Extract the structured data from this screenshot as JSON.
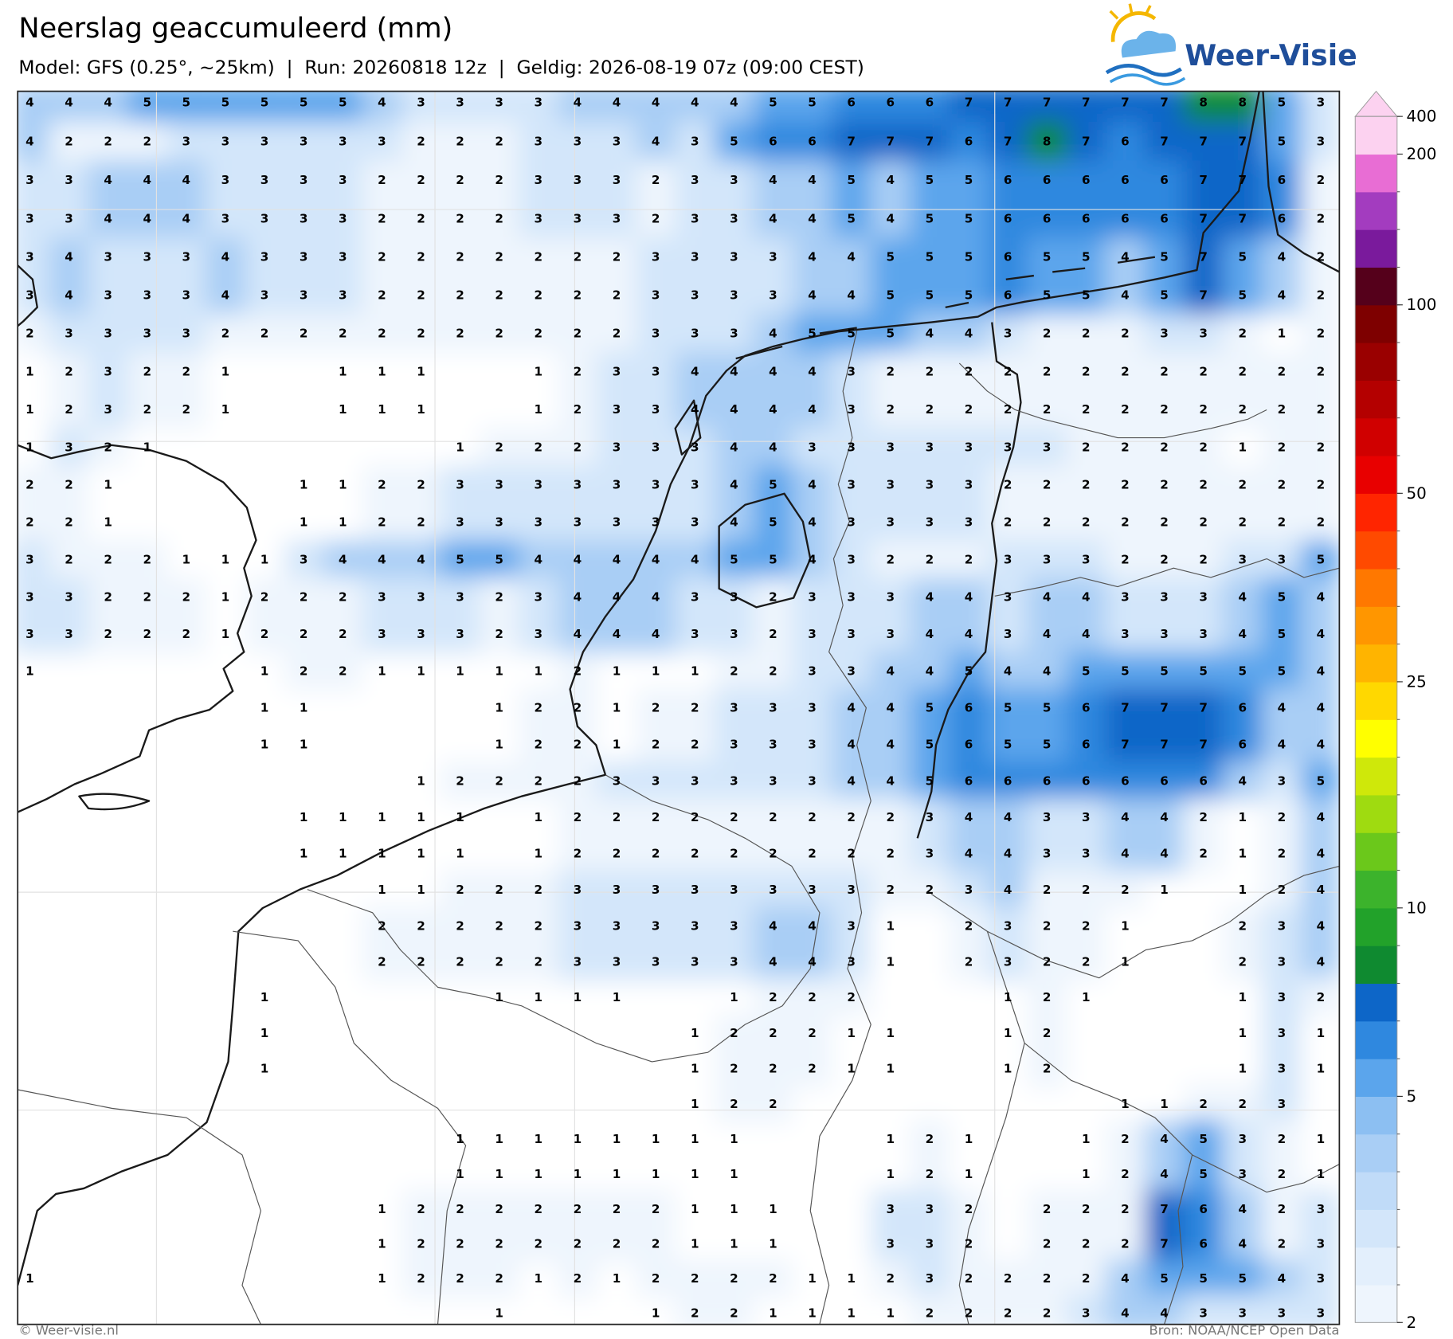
{
  "header": {
    "title": "Neerslag geaccumuleerd (mm)",
    "subtitle": "Model: GFS (0.25°, ~25km)  |  Run: 20260818 12z  |  Geldig: 2026-08-19 07z (09:00 CEST)",
    "logo": "Weer-Visie"
  },
  "map": {
    "grid_values": [
      [
        4,
        4,
        4,
        5,
        5,
        5,
        5,
        5,
        5,
        4,
        3,
        3,
        3,
        3,
        4,
        4,
        4,
        4,
        4,
        5,
        5,
        6,
        6,
        6,
        7,
        7,
        7,
        7,
        7,
        7,
        8,
        8,
        5,
        3
      ],
      [
        4,
        2,
        2,
        2,
        3,
        3,
        3,
        3,
        3,
        3,
        2,
        2,
        2,
        3,
        3,
        3,
        4,
        3,
        5,
        6,
        6,
        7,
        7,
        7,
        6,
        7,
        8,
        7,
        6,
        7,
        7,
        7,
        5,
        3
      ],
      [
        3,
        3,
        4,
        4,
        4,
        3,
        3,
        3,
        3,
        2,
        2,
        2,
        2,
        3,
        3,
        3,
        2,
        3,
        3,
        4,
        4,
        5,
        4,
        5,
        5,
        6,
        6,
        6,
        6,
        6,
        7,
        7,
        6,
        2
      ],
      [
        3,
        3,
        4,
        4,
        4,
        3,
        3,
        3,
        3,
        2,
        2,
        2,
        2,
        3,
        3,
        3,
        2,
        3,
        3,
        4,
        4,
        5,
        4,
        5,
        5,
        6,
        6,
        6,
        6,
        6,
        7,
        7,
        6,
        2
      ],
      [
        3,
        4,
        3,
        3,
        3,
        4,
        3,
        3,
        3,
        2,
        2,
        2,
        2,
        2,
        2,
        2,
        3,
        3,
        3,
        3,
        4,
        4,
        5,
        5,
        5,
        6,
        5,
        5,
        4,
        5,
        7,
        5,
        4,
        2
      ],
      [
        3,
        4,
        3,
        3,
        3,
        4,
        3,
        3,
        3,
        2,
        2,
        2,
        2,
        2,
        2,
        2,
        3,
        3,
        3,
        3,
        4,
        4,
        5,
        5,
        5,
        6,
        5,
        5,
        4,
        5,
        7,
        5,
        4,
        2
      ],
      [
        2,
        3,
        3,
        3,
        3,
        2,
        2,
        2,
        2,
        2,
        2,
        2,
        2,
        2,
        2,
        2,
        3,
        3,
        3,
        4,
        5,
        5,
        5,
        4,
        4,
        3,
        2,
        2,
        2,
        3,
        3,
        2,
        1,
        2
      ],
      [
        1,
        2,
        3,
        2,
        2,
        1,
        null,
        null,
        1,
        1,
        1,
        null,
        null,
        1,
        2,
        3,
        3,
        4,
        4,
        4,
        4,
        3,
        2,
        2,
        2,
        2,
        2,
        2,
        2,
        2,
        2,
        2,
        2,
        2
      ],
      [
        1,
        2,
        3,
        2,
        2,
        1,
        null,
        null,
        1,
        1,
        1,
        null,
        null,
        1,
        2,
        3,
        3,
        4,
        4,
        4,
        4,
        3,
        2,
        2,
        2,
        2,
        2,
        2,
        2,
        2,
        2,
        2,
        2,
        2
      ],
      [
        1,
        3,
        2,
        1,
        null,
        null,
        null,
        null,
        null,
        null,
        null,
        1,
        2,
        2,
        2,
        3,
        3,
        3,
        4,
        4,
        3,
        3,
        3,
        3,
        3,
        3,
        3,
        2,
        2,
        2,
        2,
        1,
        2,
        2
      ],
      [
        2,
        2,
        1,
        null,
        null,
        null,
        null,
        1,
        1,
        2,
        2,
        3,
        3,
        3,
        3,
        3,
        3,
        3,
        4,
        5,
        4,
        3,
        3,
        3,
        3,
        2,
        2,
        2,
        2,
        2,
        2,
        2,
        2,
        2
      ],
      [
        2,
        2,
        1,
        null,
        null,
        null,
        null,
        1,
        1,
        2,
        2,
        3,
        3,
        3,
        3,
        3,
        3,
        3,
        4,
        5,
        4,
        3,
        3,
        3,
        3,
        2,
        2,
        2,
        2,
        2,
        2,
        2,
        2,
        2
      ],
      [
        3,
        2,
        2,
        2,
        1,
        1,
        1,
        3,
        4,
        4,
        4,
        5,
        5,
        4,
        4,
        4,
        4,
        4,
        5,
        5,
        4,
        3,
        2,
        2,
        2,
        3,
        3,
        3,
        2,
        2,
        2,
        3,
        3,
        5
      ],
      [
        3,
        3,
        2,
        2,
        2,
        1,
        2,
        2,
        2,
        3,
        3,
        3,
        2,
        3,
        4,
        4,
        4,
        3,
        3,
        2,
        3,
        3,
        3,
        4,
        4,
        3,
        4,
        4,
        3,
        3,
        3,
        4,
        5,
        4
      ],
      [
        3,
        3,
        2,
        2,
        2,
        1,
        2,
        2,
        2,
        3,
        3,
        3,
        2,
        3,
        4,
        4,
        4,
        3,
        3,
        2,
        3,
        3,
        3,
        4,
        4,
        3,
        4,
        4,
        3,
        3,
        3,
        4,
        5,
        4
      ],
      [
        1,
        null,
        null,
        null,
        null,
        null,
        1,
        2,
        2,
        1,
        1,
        1,
        1,
        1,
        2,
        1,
        1,
        1,
        2,
        2,
        3,
        3,
        4,
        4,
        5,
        4,
        4,
        5,
        5,
        5,
        5,
        5,
        5,
        4
      ],
      [
        null,
        null,
        null,
        null,
        null,
        null,
        1,
        1,
        null,
        null,
        null,
        null,
        1,
        2,
        2,
        1,
        2,
        2,
        3,
        3,
        3,
        4,
        4,
        5,
        6,
        5,
        5,
        6,
        7,
        7,
        7,
        6,
        4,
        4
      ],
      [
        null,
        null,
        null,
        null,
        null,
        null,
        1,
        1,
        null,
        null,
        null,
        null,
        1,
        2,
        2,
        1,
        2,
        2,
        3,
        3,
        3,
        4,
        4,
        5,
        6,
        5,
        5,
        6,
        7,
        7,
        7,
        6,
        4,
        4
      ],
      [
        null,
        null,
        null,
        null,
        null,
        null,
        null,
        null,
        null,
        null,
        1,
        2,
        2,
        2,
        2,
        3,
        3,
        3,
        3,
        3,
        3,
        4,
        4,
        5,
        6,
        6,
        6,
        6,
        6,
        6,
        6,
        4,
        3,
        5
      ],
      [
        null,
        null,
        null,
        null,
        null,
        null,
        null,
        1,
        1,
        1,
        1,
        1,
        null,
        1,
        2,
        2,
        2,
        2,
        2,
        2,
        2,
        2,
        2,
        3,
        4,
        4,
        3,
        3,
        4,
        4,
        2,
        1,
        2,
        4
      ],
      [
        null,
        null,
        null,
        null,
        null,
        null,
        null,
        1,
        1,
        1,
        1,
        1,
        null,
        1,
        2,
        2,
        2,
        2,
        2,
        2,
        2,
        2,
        2,
        3,
        4,
        4,
        3,
        3,
        4,
        4,
        2,
        1,
        2,
        4
      ],
      [
        null,
        null,
        null,
        null,
        null,
        null,
        null,
        null,
        null,
        1,
        1,
        2,
        2,
        2,
        3,
        3,
        3,
        3,
        3,
        3,
        3,
        3,
        2,
        2,
        3,
        4,
        2,
        2,
        2,
        1,
        null,
        1,
        2,
        4
      ],
      [
        null,
        null,
        null,
        null,
        null,
        null,
        null,
        null,
        null,
        2,
        2,
        2,
        2,
        2,
        3,
        3,
        3,
        3,
        3,
        4,
        4,
        3,
        1,
        null,
        2,
        3,
        2,
        2,
        1,
        null,
        null,
        2,
        3,
        4
      ],
      [
        null,
        null,
        null,
        null,
        null,
        null,
        null,
        null,
        null,
        2,
        2,
        2,
        2,
        2,
        3,
        3,
        3,
        3,
        3,
        4,
        4,
        3,
        1,
        null,
        2,
        3,
        2,
        2,
        1,
        null,
        null,
        2,
        3,
        4
      ],
      [
        null,
        null,
        null,
        null,
        null,
        null,
        1,
        null,
        null,
        null,
        null,
        null,
        1,
        1,
        1,
        1,
        null,
        null,
        1,
        2,
        2,
        2,
        null,
        null,
        null,
        1,
        2,
        1,
        null,
        null,
        null,
        1,
        3,
        2
      ],
      [
        null,
        null,
        null,
        null,
        null,
        null,
        1,
        null,
        null,
        null,
        null,
        null,
        null,
        null,
        null,
        null,
        null,
        1,
        2,
        2,
        2,
        1,
        1,
        null,
        null,
        1,
        2,
        null,
        null,
        null,
        null,
        1,
        3,
        1
      ],
      [
        null,
        null,
        null,
        null,
        null,
        null,
        1,
        null,
        null,
        null,
        null,
        null,
        null,
        null,
        null,
        null,
        null,
        1,
        2,
        2,
        2,
        1,
        1,
        null,
        null,
        1,
        2,
        null,
        null,
        null,
        null,
        1,
        3,
        1
      ],
      [
        null,
        null,
        null,
        null,
        null,
        null,
        null,
        null,
        null,
        null,
        null,
        null,
        null,
        null,
        null,
        null,
        null,
        1,
        2,
        2,
        null,
        null,
        null,
        null,
        null,
        null,
        null,
        null,
        1,
        1,
        2,
        2,
        3,
        null
      ],
      [
        null,
        null,
        null,
        null,
        null,
        null,
        null,
        null,
        null,
        null,
        null,
        1,
        1,
        1,
        1,
        1,
        1,
        1,
        1,
        null,
        null,
        null,
        1,
        2,
        1,
        null,
        null,
        1,
        2,
        4,
        5,
        3,
        2,
        1
      ],
      [
        null,
        null,
        null,
        null,
        null,
        null,
        null,
        null,
        null,
        null,
        null,
        1,
        1,
        1,
        1,
        1,
        1,
        1,
        1,
        null,
        null,
        null,
        1,
        2,
        1,
        null,
        null,
        1,
        2,
        4,
        5,
        3,
        2,
        1
      ],
      [
        null,
        null,
        null,
        null,
        null,
        null,
        null,
        null,
        null,
        1,
        2,
        2,
        2,
        2,
        2,
        2,
        2,
        1,
        1,
        1,
        null,
        null,
        3,
        3,
        2,
        null,
        2,
        2,
        2,
        7,
        6,
        4,
        2,
        3
      ],
      [
        null,
        null,
        null,
        null,
        null,
        null,
        null,
        null,
        null,
        1,
        2,
        2,
        2,
        2,
        2,
        2,
        2,
        1,
        1,
        1,
        null,
        null,
        3,
        3,
        2,
        null,
        2,
        2,
        2,
        7,
        6,
        4,
        2,
        3
      ],
      [
        1,
        null,
        null,
        null,
        null,
        null,
        null,
        null,
        null,
        1,
        2,
        2,
        2,
        1,
        2,
        1,
        2,
        2,
        2,
        2,
        1,
        1,
        2,
        3,
        2,
        2,
        2,
        2,
        4,
        5,
        5,
        5,
        4,
        3
      ],
      [
        null,
        null,
        null,
        null,
        null,
        null,
        null,
        null,
        null,
        null,
        null,
        null,
        1,
        null,
        null,
        null,
        1,
        2,
        2,
        1,
        1,
        1,
        1,
        2,
        2,
        2,
        2,
        3,
        4,
        4,
        3,
        3,
        3,
        3
      ]
    ]
  },
  "colorbar": {
    "levels": [
      2,
      2.5,
      3,
      3.5,
      4,
      4.5,
      5,
      6,
      7,
      8,
      9,
      10,
      12.5,
      15,
      17.5,
      20,
      22.5,
      25,
      30,
      35,
      40,
      45,
      50,
      60,
      70,
      80,
      90,
      100,
      125,
      150,
      175,
      200,
      400
    ],
    "colors": [
      "#eef5fd",
      "#e3effc",
      "#d3e6fa",
      "#c0dbf8",
      "#a9cef5",
      "#8cbff2",
      "#5ba5ec",
      "#2f88df",
      "#0d66c8",
      "#0f8a30",
      "#22a22a",
      "#3cb32c",
      "#6bc81b",
      "#9fdb10",
      "#cfe80a",
      "#ffff00",
      "#ffd800",
      "#ffb400",
      "#ff9600",
      "#ff7800",
      "#ff4a00",
      "#ff2500",
      "#e80000",
      "#d00000",
      "#b40000",
      "#9a0000",
      "#7e0000",
      "#55001b",
      "#7a1a9c",
      "#a33cbf",
      "#e86dd4",
      "#fcd2f0"
    ],
    "extend_color": "#fcd2f0",
    "ticks": [
      2,
      5,
      10,
      25,
      50,
      100,
      200,
      400
    ]
  },
  "footer": {
    "left": "© Weer-visie.nl",
    "right": "Bron: NOAA/NCEP Open Data"
  }
}
